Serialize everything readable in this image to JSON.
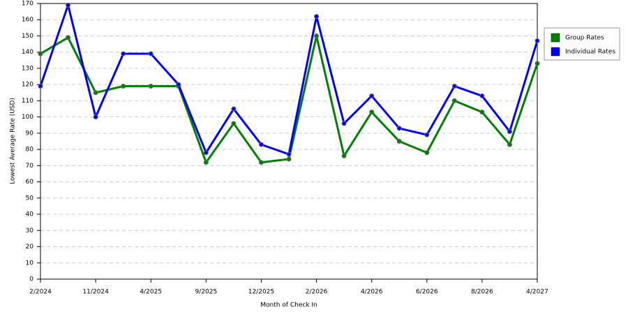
{
  "chart_data": {
    "type": "line",
    "x_label": "Month of Check In",
    "y_label": "Lowest Average Rate (USD)",
    "categories": [
      "2/2024",
      null,
      "11/2024",
      null,
      "4/2025",
      null,
      "9/2025",
      null,
      "12/2025",
      null,
      "2/2026",
      null,
      "4/2026",
      null,
      "6/2026",
      null,
      "8/2026",
      null,
      "4/2027"
    ],
    "series": [
      {
        "name": "Group Rates",
        "color": "#008000",
        "values": [
          139,
          149,
          115,
          119,
          119,
          119,
          72,
          96,
          72,
          74,
          150,
          76,
          103,
          85,
          78,
          110,
          103,
          83,
          133
        ]
      },
      {
        "name": "Individual Rates",
        "color": "#0000ff",
        "values": [
          119,
          169,
          100,
          139,
          139,
          120,
          78,
          105,
          83,
          77,
          162,
          96,
          113,
          93,
          89,
          119,
          113,
          91,
          147
        ]
      }
    ],
    "ylim": [
      0,
      170
    ],
    "yticks": [
      0,
      10,
      20,
      30,
      40,
      50,
      60,
      70,
      80,
      90,
      100,
      110,
      120,
      130,
      140,
      150,
      160,
      170
    ],
    "grid": true,
    "legend": "right"
  }
}
